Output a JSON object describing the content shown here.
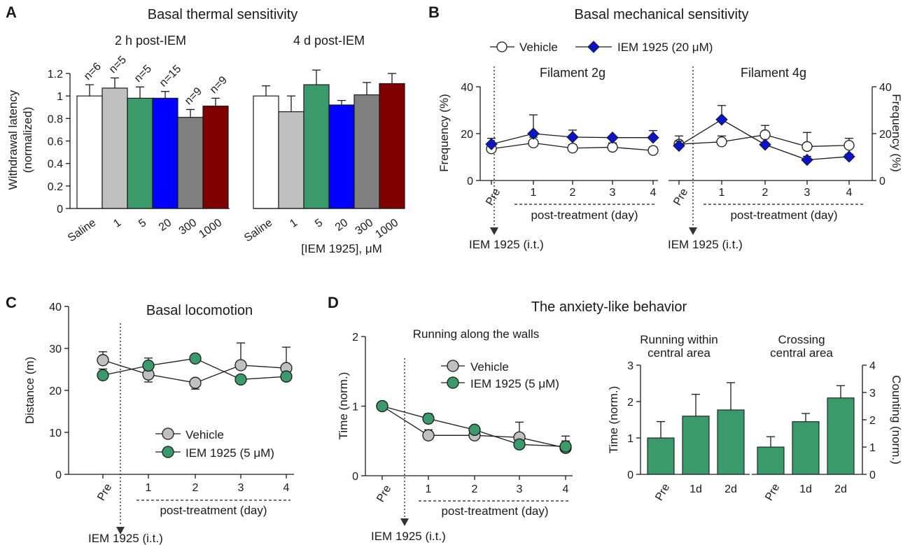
{
  "colors": {
    "saline": "#ffffff",
    "c1": "#c0c0c0",
    "c5": "#3a9a6a",
    "c20": "#0000ff",
    "c300": "#808080",
    "c1000": "#800000",
    "vehicle": "#ffffff",
    "vehicle_gray": "#c0c0c0",
    "iem_blue": "#0a14c8",
    "iem_green": "#3a9a6a",
    "bar_green": "#3a9a6a"
  },
  "panels": {
    "A": "A",
    "B": "B",
    "C": "C",
    "D": "D"
  },
  "chart_data": [
    {
      "id": "A",
      "type": "bar",
      "title": "Basal thermal sensitivity",
      "subtitles": [
        "2 h post-IEM",
        "4 d post-IEM"
      ],
      "ylabel_line1": "Withdrawal latency",
      "ylabel_line2": "(normalized)",
      "xlabel": "[IEM 1925], μM",
      "ylim": [
        0,
        1.2
      ],
      "yticks": [
        "0",
        "0.2",
        "0.4",
        "0.6",
        "0.8",
        "1",
        "1.2"
      ],
      "categories": [
        "Saline",
        "1",
        "5",
        "20",
        "300",
        "1000"
      ],
      "n_labels": [
        "n=6",
        "n=5",
        "n=5",
        "n=15",
        "n=9",
        "n=9"
      ],
      "series": [
        {
          "name": "2 h post-IEM",
          "values": [
            1.0,
            1.07,
            0.98,
            0.98,
            0.81,
            0.91
          ],
          "errors": [
            0.1,
            0.09,
            0.1,
            0.06,
            0.07,
            0.07
          ]
        },
        {
          "name": "4 d post-IEM",
          "values": [
            1.0,
            0.86,
            1.1,
            0.92,
            1.01,
            1.11
          ],
          "errors": [
            0.09,
            0.14,
            0.13,
            0.04,
            0.11,
            0.09
          ]
        }
      ]
    },
    {
      "id": "B",
      "type": "line",
      "title": "Basal mechanical sensitivity",
      "legend": [
        "Vehicle",
        "IEM 1925 (20 μM)"
      ],
      "ylabel": "Frequency (%)",
      "ylabel_right": "Frequency (%)",
      "ylim": [
        0,
        40
      ],
      "yticks": [
        "0",
        "20",
        "40"
      ],
      "x": [
        "Pre",
        "1",
        "2",
        "3",
        "4"
      ],
      "post_label": "post-treatment (day)",
      "arrow_label": "IEM 1925  (i.t.)",
      "subplots": [
        {
          "title": "Filament 2g",
          "series": [
            {
              "name": "Vehicle",
              "values": [
                13.5,
                16,
                13.8,
                14.2,
                12.8
              ],
              "errors": [
                2,
                2.5,
                1.5,
                1.8,
                1.5
              ]
            },
            {
              "name": "IEM 1925 (20 μM)",
              "values": [
                15.5,
                20,
                18.5,
                18.3,
                18.3
              ],
              "errors": [
                2.5,
                8,
                3,
                0,
                3
              ]
            }
          ]
        },
        {
          "title": "Filament 4g",
          "series": [
            {
              "name": "Vehicle",
              "values": [
                15.5,
                16.5,
                19.5,
                14.5,
                15
              ],
              "errors": [
                3.5,
                2.5,
                4,
                6,
                3
              ]
            },
            {
              "name": "IEM 1925 (20 μM)",
              "values": [
                14.8,
                26,
                15.3,
                8.8,
                10.2
              ],
              "errors": [
                2,
                6,
                0,
                1.5,
                1
              ]
            }
          ]
        }
      ]
    },
    {
      "id": "C",
      "type": "line",
      "title": "Basal locomotion",
      "ylabel": "Distance (m)",
      "ylim": [
        0,
        40
      ],
      "yticks": [
        "0",
        "10",
        "20",
        "30",
        "40"
      ],
      "x": [
        "Pre",
        "1",
        "2",
        "3",
        "4"
      ],
      "post_label": "post-treatment (day)",
      "arrow_label": "IEM 1925  (i.t.)",
      "legend": [
        "Vehicle",
        "IEM 1925 (5 μM)"
      ],
      "series": [
        {
          "name": "Vehicle",
          "values": [
            27.2,
            23.8,
            21.8,
            26,
            25.3
          ],
          "errors": [
            2,
            1.8,
            1.5,
            5.3,
            5
          ]
        },
        {
          "name": "IEM 1925 (5 μM)",
          "values": [
            23.6,
            25.9,
            27.6,
            22.6,
            23.3
          ],
          "errors": [
            1.5,
            1.8,
            0,
            0,
            0
          ]
        }
      ]
    },
    {
      "id": "D",
      "type": "line",
      "title": "The anxiety-like behavior",
      "subtitle": "Running along the walls",
      "ylabel": "Time (norm.)",
      "ylim": [
        0,
        2
      ],
      "yticks": [
        "0",
        "1",
        "2"
      ],
      "x": [
        "Pre",
        "1",
        "2",
        "3",
        "4"
      ],
      "post_label": "post-treatment (day)",
      "arrow_label": "IEM 1925  (i.t.)",
      "legend": [
        "Vehicle",
        "IEM 1925 (5 μM)"
      ],
      "series": [
        {
          "name": "Vehicle",
          "values": [
            1.0,
            0.58,
            0.58,
            0.55,
            0.4
          ],
          "errors": [
            0,
            0.08,
            0.05,
            0.22,
            0.17
          ]
        },
        {
          "name": "IEM 1925 (5 μM)",
          "values": [
            1.0,
            0.82,
            0.66,
            0.45,
            0.42
          ],
          "errors": [
            0,
            0.07,
            0.05,
            0.06,
            0.08
          ]
        }
      ]
    },
    {
      "id": "D2",
      "type": "bar",
      "title_line1": "Running within",
      "title_line2": "central area",
      "ylabel": "Time (norm.)",
      "ylim": [
        0,
        3
      ],
      "yticks": [
        "0",
        "1",
        "2",
        "3"
      ],
      "categories": [
        "Pre",
        "1d",
        "2d"
      ],
      "values": [
        1.0,
        1.6,
        1.77
      ],
      "errors": [
        0.45,
        0.6,
        0.75
      ]
    },
    {
      "id": "D3",
      "type": "bar",
      "title_line1": "Crossing",
      "title_line2": "central area",
      "ylabel": "Counting (norm.)",
      "ylim": [
        0,
        4
      ],
      "yticks": [
        "0",
        "1",
        "2",
        "3",
        "4"
      ],
      "categories": [
        "Pre",
        "1d",
        "2d"
      ],
      "values": [
        1.0,
        1.93,
        2.8
      ],
      "errors": [
        0.38,
        0.3,
        0.45
      ]
    }
  ]
}
